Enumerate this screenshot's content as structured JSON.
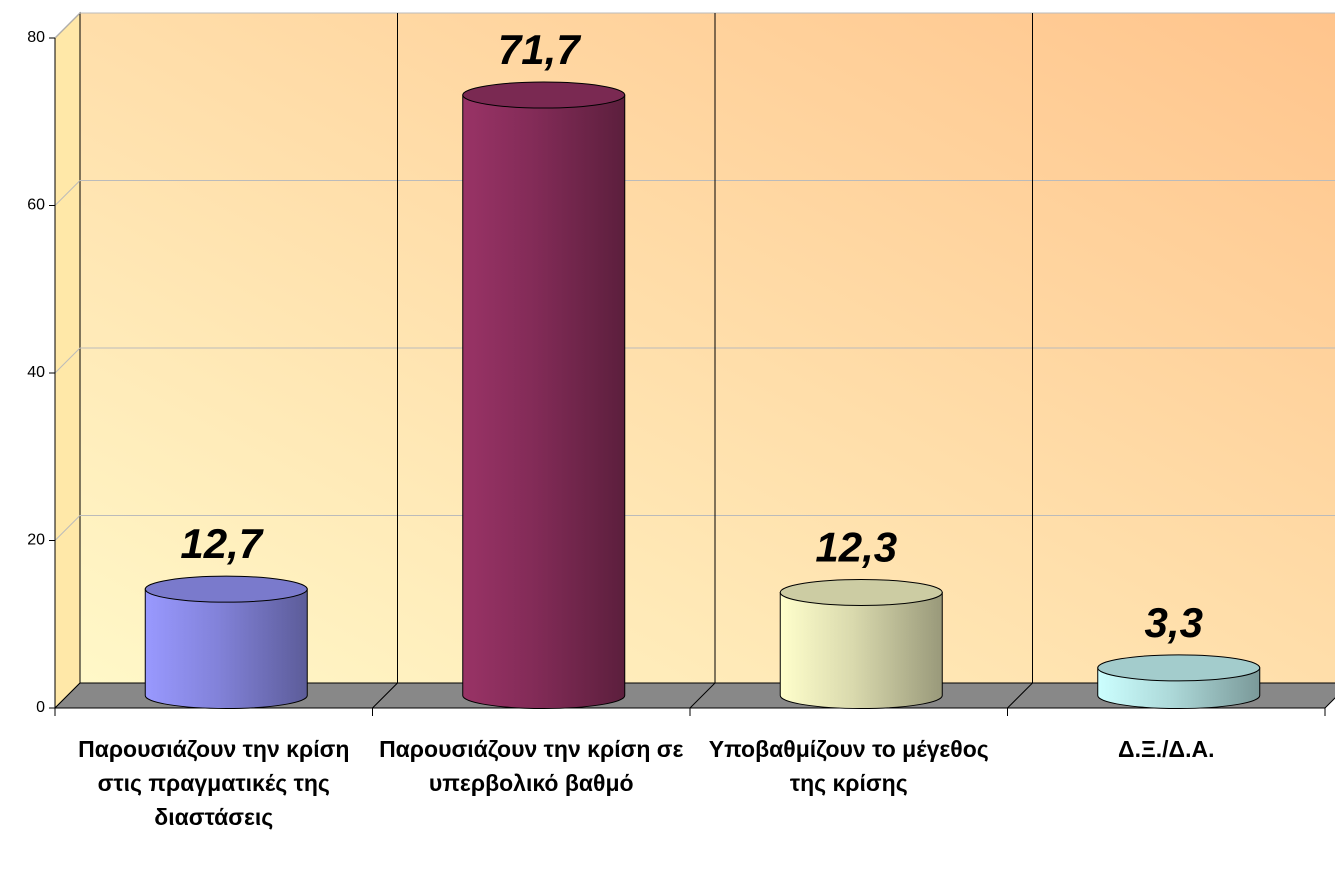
{
  "chart_data": {
    "type": "bar",
    "categories": [
      "Παρουσιάζουν την κρίση στις πραγματικές της διαστάσεις",
      "Παρουσιάζουν την κρίση σε υπερβολικό βαθμό",
      "Υποβαθμίζουν το μέγεθος της κρίσης",
      "Δ.Ξ./Δ.Α."
    ],
    "values": [
      12.7,
      71.7,
      12.3,
      3.3
    ],
    "value_labels": [
      "12,7",
      "71,7",
      "12,3",
      "3,3"
    ],
    "colors": [
      "#9999ff",
      "#993366",
      "#ffffcc",
      "#ccffff"
    ],
    "ylim": [
      0,
      80
    ],
    "yticks": [
      0,
      20,
      40,
      60,
      80
    ],
    "grid": true
  }
}
